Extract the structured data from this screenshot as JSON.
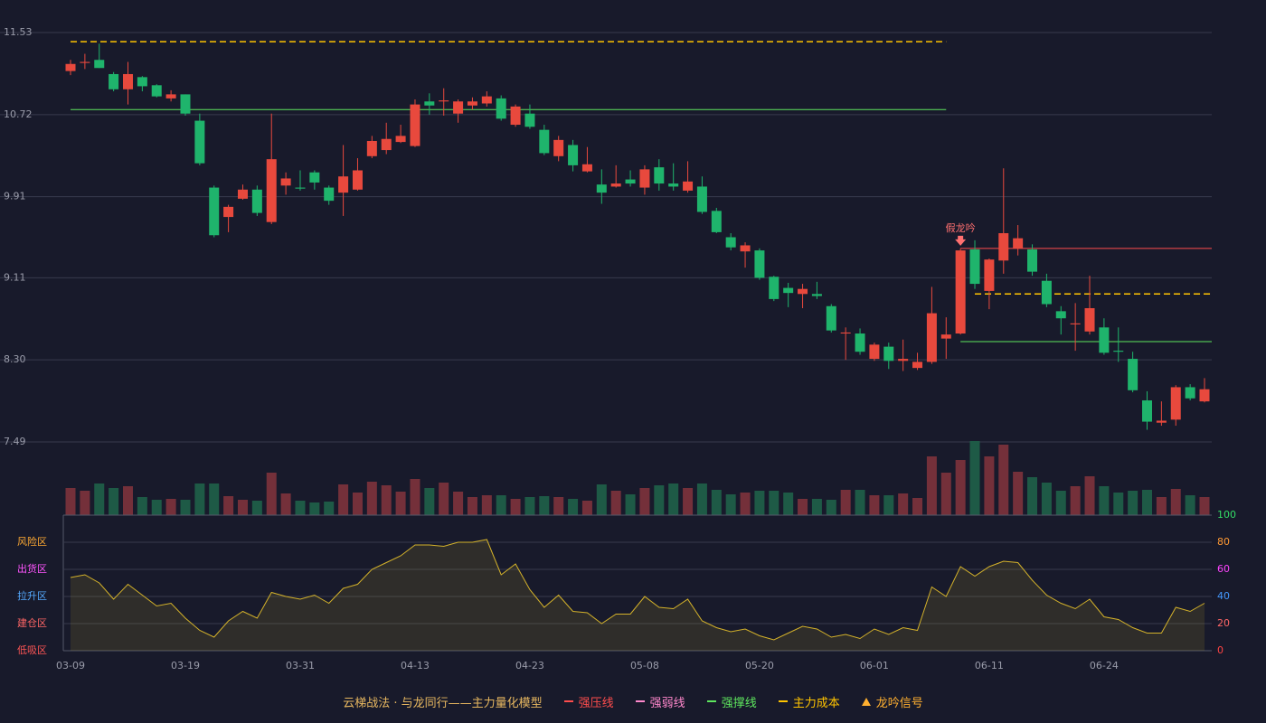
{
  "chart_data": {
    "type": "candlestick",
    "categories": [
      "03-09",
      null,
      null,
      null,
      null,
      null,
      null,
      null,
      "03-19",
      null,
      null,
      null,
      null,
      null,
      null,
      null,
      "03-31",
      null,
      null,
      null,
      null,
      null,
      null,
      null,
      "04-13",
      null,
      null,
      null,
      null,
      null,
      null,
      null,
      "04-23",
      null,
      null,
      null,
      null,
      null,
      null,
      null,
      "05-08",
      null,
      null,
      null,
      null,
      null,
      null,
      null,
      "05-20",
      null,
      null,
      null,
      null,
      null,
      null,
      null,
      "06-01",
      null,
      null,
      null,
      null,
      null,
      null,
      null,
      "06-11",
      null,
      null,
      null,
      null,
      null,
      null,
      null,
      "06-24",
      null,
      null,
      null,
      null,
      null,
      null,
      null
    ],
    "open": [
      11.15,
      11.23,
      11.26,
      11.12,
      10.97,
      11.09,
      11.01,
      10.88,
      10.92,
      10.66,
      10.0,
      9.71,
      9.89,
      9.98,
      9.66,
      10.02,
      10.0,
      10.15,
      10.0,
      9.95,
      9.98,
      10.31,
      10.37,
      10.45,
      10.41,
      10.85,
      10.85,
      10.73,
      10.81,
      10.83,
      10.88,
      10.62,
      10.73,
      10.57,
      10.31,
      10.42,
      10.16,
      10.03,
      10.01,
      10.08,
      10.0,
      10.2,
      10.04,
      9.97,
      10.01,
      9.77,
      9.51,
      9.37,
      9.38,
      9.12,
      9.01,
      8.95,
      8.95,
      8.83,
      8.56,
      8.56,
      8.31,
      8.43,
      8.29,
      8.22,
      8.28,
      8.51,
      8.56,
      9.39,
      8.98,
      9.28,
      9.4,
      9.39,
      9.08,
      8.78,
      8.65,
      8.58,
      8.62,
      8.39,
      8.31,
      7.9,
      7.68,
      7.71,
      8.03,
      7.89
    ],
    "high": [
      11.26,
      11.32,
      11.42,
      11.14,
      11.24,
      11.1,
      11.02,
      10.96,
      10.92,
      10.73,
      10.02,
      9.83,
      10.03,
      10.02,
      10.73,
      10.15,
      10.17,
      10.17,
      10.02,
      10.42,
      10.29,
      10.51,
      10.64,
      10.62,
      10.87,
      10.93,
      10.98,
      10.87,
      10.89,
      10.95,
      10.91,
      10.82,
      10.82,
      10.62,
      10.51,
      10.47,
      10.4,
      10.18,
      10.22,
      10.17,
      10.22,
      10.28,
      10.24,
      10.26,
      10.11,
      9.8,
      9.55,
      9.46,
      9.4,
      9.13,
      9.06,
      9.05,
      9.07,
      8.85,
      8.62,
      8.61,
      8.47,
      8.47,
      8.5,
      8.37,
      9.02,
      8.72,
      9.4,
      9.48,
      9.3,
      10.19,
      9.63,
      9.44,
      9.15,
      8.83,
      8.86,
      9.13,
      8.71,
      8.62,
      8.38,
      7.99,
      7.89,
      8.05,
      8.06,
      8.12
    ],
    "low": [
      11.11,
      11.17,
      11.18,
      10.95,
      10.82,
      10.95,
      10.89,
      10.85,
      10.71,
      10.22,
      9.51,
      9.56,
      9.88,
      9.72,
      9.64,
      9.93,
      9.97,
      9.98,
      9.83,
      9.72,
      9.97,
      10.29,
      10.33,
      10.44,
      10.4,
      10.72,
      10.71,
      10.64,
      10.77,
      10.8,
      10.66,
      10.6,
      10.58,
      10.32,
      10.26,
      10.16,
      10.15,
      9.84,
      10.0,
      10.01,
      9.93,
      9.97,
      9.97,
      9.95,
      9.74,
      9.55,
      9.38,
      9.21,
      9.09,
      8.88,
      8.82,
      8.81,
      8.9,
      8.57,
      8.3,
      8.35,
      8.29,
      8.21,
      8.19,
      8.2,
      8.26,
      8.31,
      8.55,
      9.0,
      8.8,
      9.15,
      9.33,
      9.13,
      8.82,
      8.55,
      8.39,
      8.55,
      8.35,
      8.28,
      7.98,
      7.61,
      7.65,
      7.65,
      7.9,
      7.88
    ],
    "close": [
      11.22,
      11.24,
      11.18,
      10.97,
      11.12,
      11.0,
      10.9,
      10.92,
      10.73,
      10.24,
      9.53,
      9.81,
      9.98,
      9.75,
      10.28,
      10.09,
      9.99,
      10.05,
      9.87,
      10.11,
      10.17,
      10.46,
      10.48,
      10.51,
      10.82,
      10.81,
      10.86,
      10.85,
      10.85,
      10.9,
      10.68,
      10.8,
      10.6,
      10.34,
      10.47,
      10.22,
      10.23,
      9.95,
      10.04,
      10.04,
      10.18,
      10.04,
      10.01,
      10.06,
      9.76,
      9.56,
      9.41,
      9.43,
      9.11,
      8.9,
      8.96,
      9.0,
      8.93,
      8.59,
      8.57,
      8.38,
      8.45,
      8.29,
      8.31,
      8.28,
      8.76,
      8.55,
      9.38,
      9.05,
      9.29,
      9.55,
      9.5,
      9.17,
      8.85,
      8.71,
      8.66,
      8.81,
      8.37,
      8.38,
      8.0,
      7.69,
      7.7,
      8.03,
      7.92,
      8.01
    ],
    "colors": {
      "up": "#e8493d",
      "down": "#1fb46c",
      "volume_up": "#74303a",
      "volume_down": "#1e5a46"
    },
    "ylim": [
      7.49,
      11.53
    ],
    "yticks": [
      11.53,
      10.72,
      9.91,
      9.11,
      {
        "value": 8.3,
        "label": "8.30"
      },
      7.49
    ],
    "levels": [
      {
        "name": "强压线",
        "color": "#ff4d4d",
        "dash": "solid",
        "segments": [
          {
            "value": 9.4,
            "from": 62,
            "to": 79
          }
        ]
      },
      {
        "name": "强弱线",
        "color": "#ff88cc",
        "dash": "dash",
        "segments": [
          {
            "value": 8.95,
            "from": 63,
            "to": 79
          }
        ]
      },
      {
        "name": "强撑线",
        "color": "#5ee65e",
        "dash": "solid",
        "segments": [
          {
            "value": 10.77,
            "from": 0,
            "to": 61
          },
          {
            "value": 8.48,
            "from": 62,
            "to": 79
          }
        ]
      },
      {
        "name": "主力成本",
        "color": "#ffc400",
        "dash": "dash",
        "segments": [
          {
            "value": 11.44,
            "from": 0,
            "to": 61
          },
          {
            "value": 8.95,
            "from": 63,
            "to": 79
          }
        ]
      }
    ],
    "signal": {
      "name": "龙吟信号",
      "color": "#ffb030"
    },
    "annotation": {
      "text": "假龙吟",
      "index": 62,
      "color": "#ff7070"
    },
    "legend_title": "云梯战法 · 与龙同行——主力量化模型",
    "legend_title_color": "#e8b860",
    "volume": {
      "values": [
        30,
        27,
        35,
        30,
        32,
        20,
        17,
        18,
        17,
        35,
        35,
        21,
        17,
        16,
        47,
        24,
        16,
        14,
        15,
        34,
        25,
        37,
        33,
        26,
        40,
        30,
        36,
        26,
        20,
        22,
        22,
        18,
        20,
        21,
        20,
        18,
        16,
        34,
        27,
        23,
        30,
        33,
        35,
        30,
        35,
        28,
        23,
        25,
        27,
        27,
        25,
        18,
        18,
        17,
        28,
        28,
        22,
        22,
        24,
        19,
        65,
        47,
        61,
        82,
        65,
        78,
        48,
        42,
        36,
        27,
        32,
        43,
        32,
        25,
        27,
        28,
        20,
        29,
        22,
        20
      ]
    },
    "oscillator": {
      "type": "area",
      "color": "#d4b22a",
      "values": [
        54,
        56,
        50,
        38,
        49,
        41,
        33,
        35,
        24,
        15,
        10,
        22,
        29,
        24,
        43,
        40,
        38,
        41,
        35,
        46,
        49,
        60,
        65,
        70,
        78,
        78,
        77,
        80,
        80,
        82,
        56,
        64,
        45,
        32,
        41,
        29,
        28,
        20,
        27,
        27,
        40,
        32,
        31,
        38,
        22,
        17,
        14,
        16,
        11,
        8,
        13,
        18,
        16,
        10,
        12,
        9,
        16,
        12,
        17,
        15,
        47,
        40,
        62,
        55,
        62,
        66,
        65,
        52,
        41,
        35,
        31,
        38,
        25,
        23,
        17,
        13,
        13,
        32,
        29,
        35
      ],
      "ylim": [
        0,
        100
      ],
      "yticks": [
        100,
        80,
        60,
        40,
        20,
        0
      ],
      "ytick_colors": [
        "#33dd66",
        "#ff9933",
        "#ff44ff",
        "#4499ff",
        "#ff6666",
        "#ff4444"
      ],
      "zones": {
        "labels": [
          "风险区",
          "出货区",
          "拉升区",
          "建仓区",
          "低吸区"
        ],
        "values": [
          80,
          60,
          40,
          20,
          0
        ],
        "colors": [
          "#ffaa33",
          "#ff55ff",
          "#55aaff",
          "#ff6666",
          "#ff5555"
        ]
      }
    }
  }
}
